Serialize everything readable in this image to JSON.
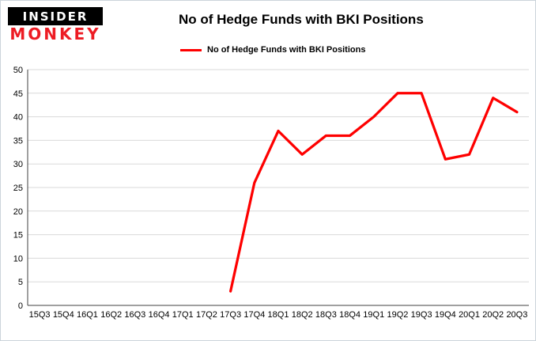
{
  "logo": {
    "line1": "INSIDER",
    "line2": "MONKEY"
  },
  "header": {
    "title": "No of Hedge Funds with BKI Positions"
  },
  "legend": {
    "label": "No of Hedge Funds with BKI Positions"
  },
  "colors": {
    "accent": "#fe0000",
    "grid": "#d9d9d9",
    "axis": "#404040",
    "text": "#000000",
    "logo_red": "#ed1c24",
    "logo_bg": "#000000"
  },
  "chart_data": {
    "type": "line",
    "title": "No of Hedge Funds with BKI Positions",
    "categories": [
      "15Q3",
      "15Q4",
      "16Q1",
      "16Q2",
      "16Q3",
      "16Q4",
      "17Q1",
      "17Q2",
      "17Q3",
      "17Q4",
      "18Q1",
      "18Q2",
      "18Q3",
      "18Q4",
      "19Q1",
      "19Q2",
      "19Q3",
      "19Q4",
      "20Q1",
      "20Q2",
      "20Q3"
    ],
    "series": [
      {
        "name": "No of Hedge Funds with BKI Positions",
        "color": "#fe0000",
        "values": [
          null,
          null,
          null,
          null,
          null,
          null,
          null,
          null,
          3,
          26,
          37,
          32,
          36,
          36,
          40,
          45,
          45,
          31,
          32,
          44,
          41
        ]
      }
    ],
    "xlabel": "",
    "ylabel": "",
    "ylim": [
      0,
      50
    ],
    "ytick_step": 5,
    "grid": true,
    "legend_position": "top-left"
  }
}
